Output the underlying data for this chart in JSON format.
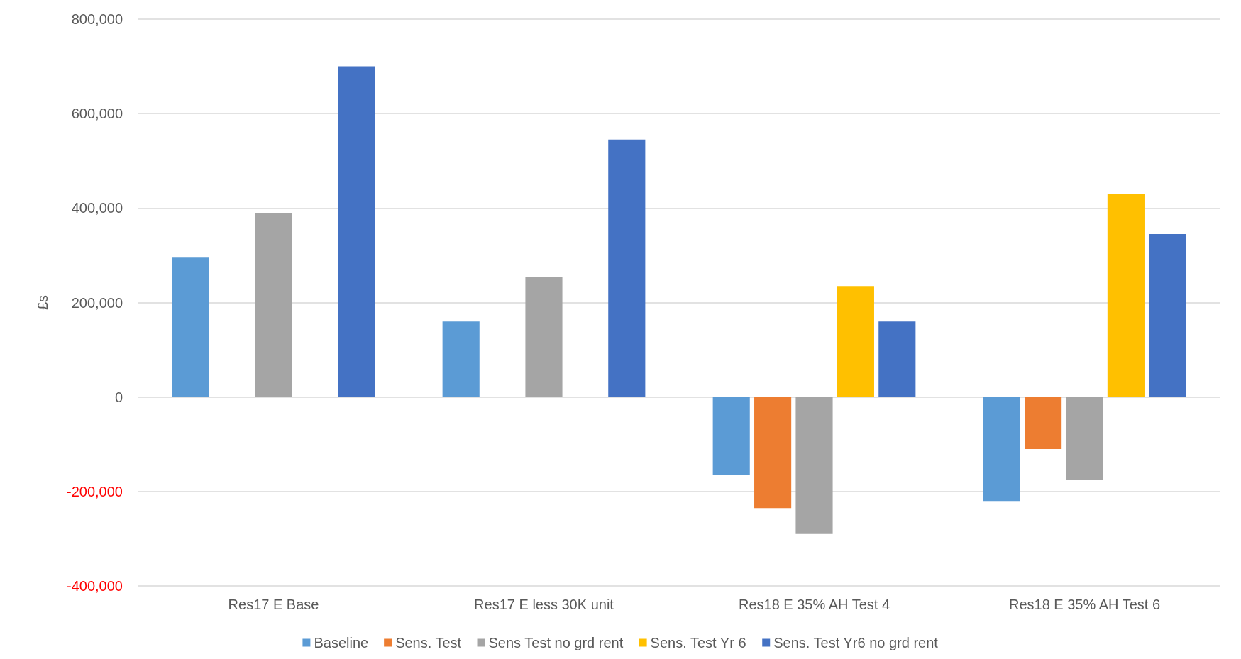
{
  "chart_data": {
    "type": "bar",
    "ylabel": "£s",
    "categories": [
      "Res17 E Base",
      "Res17 E less 30K unit",
      "Res18 E 35% AH Test 4",
      "Res18 E 35% AH Test 6"
    ],
    "series": [
      {
        "name": "Baseline",
        "color": "#5b9bd5",
        "values": [
          295000,
          160000,
          -165000,
          -220000
        ]
      },
      {
        "name": "Sens. Test",
        "color": "#ed7d31",
        "values": [
          null,
          null,
          -235000,
          -110000
        ]
      },
      {
        "name": "Sens Test no grd rent",
        "color": "#a5a5a5",
        "values": [
          390000,
          255000,
          -290000,
          -175000
        ]
      },
      {
        "name": "Sens. Test Yr 6",
        "color": "#ffc000",
        "values": [
          null,
          null,
          235000,
          430000
        ]
      },
      {
        "name": "Sens. Test Yr6 no grd rent",
        "color": "#4472c4",
        "values": [
          700000,
          545000,
          160000,
          345000
        ]
      }
    ],
    "ylim": [
      -400000,
      800000
    ],
    "yticks": [
      {
        "value": -400000,
        "label": "-400,000"
      },
      {
        "value": -200000,
        "label": "-200,000"
      },
      {
        "value": 0,
        "label": "0"
      },
      {
        "value": 200000,
        "label": "200,000"
      },
      {
        "value": 400000,
        "label": "400,000"
      },
      {
        "value": 600000,
        "label": "600,000"
      },
      {
        "value": 800000,
        "label": "800,000"
      }
    ],
    "grid": "y",
    "legend": "bottom"
  }
}
